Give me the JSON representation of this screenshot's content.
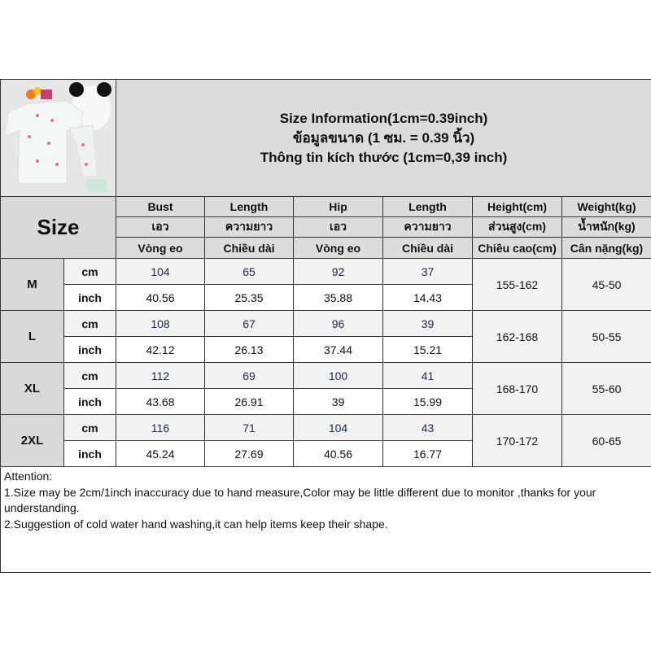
{
  "title_lines": [
    "Size Information(1cm=0.39inch)",
    "ข้อมูลขนาด (1 ซม. = 0.39 นิ้ว)",
    "Thông tin kích thước (1cm=0,39 inch)"
  ],
  "size_label": "Size",
  "columns": [
    [
      "Bust",
      "เอว",
      "Vòng eo"
    ],
    [
      "Length",
      "ความยาว",
      "Chiều dài"
    ],
    [
      "Hip",
      "เอว",
      "Vòng eo"
    ],
    [
      "Length",
      "ความยาว",
      "Chiều dài"
    ],
    [
      "Height(cm)",
      "ส่วนสูง(cm)",
      "Chiều cao(cm)"
    ],
    [
      "Weight(kg)",
      "น้ำหนัก(kg)",
      "Cân nặng(kg)"
    ]
  ],
  "units": {
    "cm": "cm",
    "inch": "inch"
  },
  "rows": [
    {
      "size": "M",
      "cm": [
        "104",
        "65",
        "92",
        "37"
      ],
      "inch": [
        "40.56",
        "25.35",
        "35.88",
        "14.43"
      ],
      "height": "155-162",
      "weight": "45-50"
    },
    {
      "size": "L",
      "cm": [
        "108",
        "67",
        "96",
        "39"
      ],
      "inch": [
        "42.12",
        "26.13",
        "37.44",
        "15.21"
      ],
      "height": "162-168",
      "weight": "50-55"
    },
    {
      "size": "XL",
      "cm": [
        "112",
        "69",
        "100",
        "41"
      ],
      "inch": [
        "43.68",
        "26.91",
        "39",
        "15.99"
      ],
      "height": "168-170",
      "weight": "55-60"
    },
    {
      "size": "2XL",
      "cm": [
        "116",
        "71",
        "104",
        "43"
      ],
      "inch": [
        "45.24",
        "27.69",
        "40.56",
        "16.77"
      ],
      "height": "170-172",
      "weight": "60-65"
    }
  ],
  "attention": [
    "Attention:",
    "1.Size may be 2cm/1inch inaccuracy due to hand measure,Color may be little different due to monitor ,thanks for your understanding.",
    "2.Suggestion of cold water hand washing,it can help items keep their shape."
  ]
}
